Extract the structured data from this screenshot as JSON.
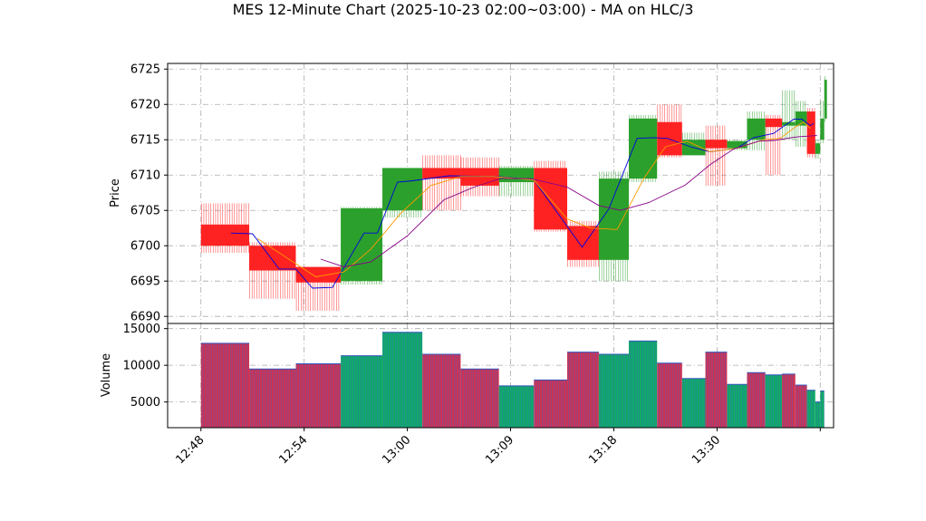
{
  "chart_data": {
    "type": "bar",
    "title": "MES 12-Minute Chart (2025-10-23 02:00~03:00) - MA on HLC/3",
    "price_panel": {
      "ylabel": "Price",
      "ylim": [
        6689,
        6725.8
      ],
      "yticks": [
        6690,
        6695,
        6700,
        6705,
        6710,
        6715,
        6720,
        6725
      ],
      "candles": [
        {
          "t": 0.0,
          "open": 6703.0,
          "high": 6706.0,
          "low": 6699.0,
          "close": 6700.0
        },
        {
          "t": 1.45,
          "open": 6700.0,
          "high": 6700.5,
          "low": 6692.5,
          "close": 6696.5
        },
        {
          "t": 2.85,
          "open": 6697.0,
          "high": 6697.0,
          "low": 6690.8,
          "close": 6694.8
        },
        {
          "t": 4.2,
          "open": 6695.0,
          "high": 6705.5,
          "low": 6694.5,
          "close": 6705.3
        },
        {
          "t": 5.45,
          "open": 6705.0,
          "high": 6711.0,
          "low": 6704.0,
          "close": 6711.0
        },
        {
          "t": 6.65,
          "open": 6711.0,
          "high": 6712.8,
          "low": 6705.0,
          "close": 6709.5
        },
        {
          "t": 7.8,
          "open": 6711.0,
          "high": 6712.5,
          "low": 6707.0,
          "close": 6708.5
        },
        {
          "t": 8.95,
          "open": 6709.0,
          "high": 6711.3,
          "low": 6707.0,
          "close": 6711.0
        },
        {
          "t": 10.0,
          "open": 6711.0,
          "high": 6712.0,
          "low": 6702.0,
          "close": 6702.3
        },
        {
          "t": 11.0,
          "open": 6702.8,
          "high": 6703.5,
          "low": 6697.0,
          "close": 6698.0
        },
        {
          "t": 11.95,
          "open": 6698.0,
          "high": 6710.5,
          "low": 6695.0,
          "close": 6709.5
        },
        {
          "t": 12.85,
          "open": 6709.5,
          "high": 6718.5,
          "low": 6709.0,
          "close": 6718.0
        },
        {
          "t": 13.7,
          "open": 6717.5,
          "high": 6720.0,
          "low": 6712.5,
          "close": 6712.8
        },
        {
          "t": 14.45,
          "open": 6712.8,
          "high": 6716.0,
          "low": 6713.0,
          "close": 6715.0
        },
        {
          "t": 15.15,
          "open": 6715.0,
          "high": 6717.0,
          "low": 6708.5,
          "close": 6713.8
        },
        {
          "t": 15.8,
          "open": 6713.8,
          "high": 6715.0,
          "low": 6713.5,
          "close": 6714.8
        },
        {
          "t": 16.4,
          "open": 6715.0,
          "high": 6719.0,
          "low": 6713.5,
          "close": 6718.0
        },
        {
          "t": 16.95,
          "open": 6718.0,
          "high": 6718.5,
          "low": 6710.0,
          "close": 6716.8
        },
        {
          "t": 17.45,
          "open": 6717.0,
          "high": 6722.0,
          "low": 6715.0,
          "close": 6717.5
        },
        {
          "t": 17.85,
          "open": 6717.0,
          "high": 6720.5,
          "low": 6714.0,
          "close": 6719.0
        },
        {
          "t": 18.2,
          "open": 6719.0,
          "high": 6719.5,
          "low": 6712.5,
          "close": 6713.0
        },
        {
          "t": 18.45,
          "open": 6713.0,
          "high": 6715.0,
          "low": 6712.3,
          "close": 6714.5
        },
        {
          "t": 18.6,
          "open": 6715.0,
          "high": 6720.5,
          "low": 6714.5,
          "close": 6718.0
        },
        {
          "t": 18.72,
          "open": 6718.0,
          "high": 6724.0,
          "low": 6717.5,
          "close": 6723.5
        }
      ],
      "series": [
        {
          "color": "#0000dd",
          "points": [
            [
              0.9,
              6701.8
            ],
            [
              1.55,
              6701.7
            ],
            [
              2.35,
              6696.7
            ],
            [
              2.85,
              6696.7
            ],
            [
              3.35,
              6694.0
            ],
            [
              3.95,
              6694.1
            ],
            [
              4.9,
              6701.8
            ],
            [
              5.3,
              6701.8
            ],
            [
              5.9,
              6709.0
            ],
            [
              6.35,
              6709.2
            ],
            [
              7.45,
              6709.9
            ],
            [
              8.95,
              6709.8
            ],
            [
              10.0,
              6709.3
            ],
            [
              11.45,
              6699.8
            ],
            [
              12.25,
              6705.2
            ],
            [
              13.1,
              6715.2
            ],
            [
              13.6,
              6715.3
            ],
            [
              14.0,
              6715.2
            ],
            [
              14.7,
              6714.0
            ],
            [
              15.3,
              6713.3
            ],
            [
              16.1,
              6713.8
            ],
            [
              16.6,
              6715.3
            ],
            [
              17.2,
              6715.9
            ],
            [
              17.8,
              6717.9
            ],
            [
              18.05,
              6717.9
            ],
            [
              18.3,
              6717.0
            ],
            [
              18.4,
              6717.3
            ]
          ]
        },
        {
          "color": "#ff9900",
          "points": [
            [
              1.7,
              6701.0
            ],
            [
              3.0,
              6697.0
            ],
            [
              3.45,
              6695.6
            ],
            [
              4.3,
              6696.3
            ],
            [
              5.1,
              6699.5
            ],
            [
              6.0,
              6704.6
            ],
            [
              6.9,
              6708.5
            ],
            [
              7.8,
              6709.8
            ],
            [
              8.8,
              6709.8
            ],
            [
              10.0,
              6709.3
            ],
            [
              11.0,
              6703.8
            ],
            [
              11.7,
              6702.5
            ],
            [
              12.5,
              6702.3
            ],
            [
              13.3,
              6709.5
            ],
            [
              13.95,
              6714.0
            ],
            [
              14.6,
              6714.8
            ],
            [
              15.3,
              6713.3
            ],
            [
              16.1,
              6713.8
            ],
            [
              16.9,
              6715.0
            ],
            [
              17.4,
              6715.2
            ],
            [
              17.85,
              6716.8
            ],
            [
              18.1,
              6717.5
            ],
            [
              18.3,
              6716.6
            ]
          ]
        },
        {
          "color": "#880088",
          "points": [
            [
              3.6,
              6698.1
            ],
            [
              4.3,
              6697.0
            ],
            [
              5.1,
              6697.7
            ],
            [
              6.2,
              6701.4
            ],
            [
              7.3,
              6706.5
            ],
            [
              8.2,
              6708.3
            ],
            [
              9.0,
              6709.5
            ],
            [
              9.9,
              6709.5
            ],
            [
              11.0,
              6708.3
            ],
            [
              11.95,
              6705.7
            ],
            [
              12.6,
              6705.0
            ],
            [
              13.45,
              6706.1
            ],
            [
              14.55,
              6708.6
            ],
            [
              15.3,
              6711.5
            ],
            [
              16.0,
              6713.7
            ],
            [
              16.75,
              6714.8
            ],
            [
              17.2,
              6714.9
            ],
            [
              17.9,
              6715.4
            ],
            [
              18.5,
              6715.6
            ]
          ]
        }
      ]
    },
    "volume_panel": {
      "ylabel": "Volume",
      "ylim": [
        1500,
        15700
      ],
      "yticks": [
        5000,
        10000,
        15000
      ],
      "bars": [
        {
          "t0": 0.0,
          "t1": 1.45,
          "value": 13000,
          "color": "#cc3355"
        },
        {
          "t0": 1.45,
          "t1": 2.85,
          "value": 9500,
          "color": "#cc3355"
        },
        {
          "t0": 2.85,
          "t1": 4.2,
          "value": 10200,
          "color": "#cc3355"
        },
        {
          "t0": 4.2,
          "t1": 5.45,
          "value": 11300,
          "color": "#11aa66"
        },
        {
          "t0": 5.45,
          "t1": 6.65,
          "value": 14500,
          "color": "#11aa66"
        },
        {
          "t0": 6.65,
          "t1": 7.8,
          "value": 11500,
          "color": "#cc3355"
        },
        {
          "t0": 7.8,
          "t1": 8.95,
          "value": 9500,
          "color": "#cc3355"
        },
        {
          "t0": 8.95,
          "t1": 10.0,
          "value": 7200,
          "color": "#11aa66"
        },
        {
          "t0": 10.0,
          "t1": 11.0,
          "value": 8000,
          "color": "#cc3355"
        },
        {
          "t0": 11.0,
          "t1": 11.95,
          "value": 11800,
          "color": "#cc3355"
        },
        {
          "t0": 11.95,
          "t1": 12.85,
          "value": 11500,
          "color": "#11aa66"
        },
        {
          "t0": 12.85,
          "t1": 13.7,
          "value": 13300,
          "color": "#11aa66"
        },
        {
          "t0": 13.7,
          "t1": 14.45,
          "value": 10300,
          "color": "#cc3355"
        },
        {
          "t0": 14.45,
          "t1": 15.15,
          "value": 8200,
          "color": "#11aa66"
        },
        {
          "t0": 15.15,
          "t1": 15.8,
          "value": 11800,
          "color": "#cc3355"
        },
        {
          "t0": 15.8,
          "t1": 16.4,
          "value": 7400,
          "color": "#11aa66"
        },
        {
          "t0": 16.4,
          "t1": 16.95,
          "value": 9000,
          "color": "#cc3355"
        },
        {
          "t0": 16.95,
          "t1": 17.45,
          "value": 8700,
          "color": "#11aa66"
        },
        {
          "t0": 17.45,
          "t1": 17.85,
          "value": 8800,
          "color": "#cc3355"
        },
        {
          "t0": 17.85,
          "t1": 18.2,
          "value": 7300,
          "color": "#cc3355"
        },
        {
          "t0": 18.2,
          "t1": 18.45,
          "value": 6600,
          "color": "#11aa66"
        },
        {
          "t0": 18.45,
          "t1": 18.6,
          "value": 5000,
          "color": "#11aa66"
        },
        {
          "t0": 18.6,
          "t1": 18.72,
          "value": 6500,
          "color": "#11aa66"
        }
      ]
    },
    "xaxis": {
      "xlim": [
        -1.0,
        19.0
      ],
      "ticks": [
        {
          "t": 0.0,
          "label": "12:48"
        },
        {
          "t": 3.1,
          "label": "12:54"
        },
        {
          "t": 6.2,
          "label": "13:00"
        },
        {
          "t": 9.3,
          "label": "13:09"
        },
        {
          "t": 12.4,
          "label": "13:18"
        },
        {
          "t": 15.5,
          "label": "13:30"
        },
        {
          "t": 18.6,
          "label": ""
        }
      ]
    },
    "grid": true,
    "colors": {
      "up": "#2ca02c",
      "down": "#ff2222",
      "grid": "#aaaaaa"
    }
  }
}
